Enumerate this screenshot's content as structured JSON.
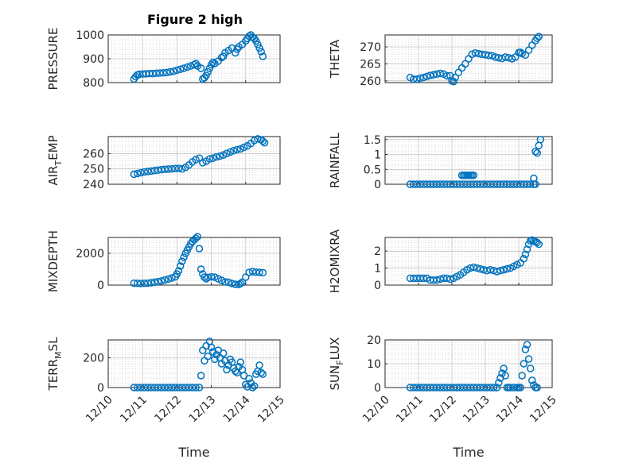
{
  "figure_title": "Figure 2 high",
  "colors": {
    "series": "#0072BD",
    "axis": "#262626",
    "grid": "#b0b0b0"
  },
  "chart_data": [
    {
      "type": "scatter",
      "title": "Figure 2 high",
      "xlabel": "",
      "ylabel": "PRESSURE",
      "ylim": [
        800,
        1000
      ],
      "yticks": [
        "800",
        "900",
        "1000"
      ],
      "xlim": [
        0,
        5
      ],
      "xticks": [
        "12/10",
        "12/11",
        "12/12",
        "12/13",
        "12/14",
        "12/15"
      ],
      "show_xticklabels": false,
      "grid": "on",
      "x": [
        0.75,
        0.8,
        0.85,
        0.9,
        1.0,
        1.1,
        1.2,
        1.3,
        1.4,
        1.5,
        1.6,
        1.7,
        1.8,
        1.9,
        2.0,
        2.1,
        2.2,
        2.3,
        2.4,
        2.5,
        2.55,
        2.6,
        2.7,
        2.75,
        2.8,
        2.85,
        2.9,
        2.95,
        3.0,
        3.05,
        3.1,
        3.2,
        3.3,
        3.35,
        3.4,
        3.5,
        3.6,
        3.7,
        3.75,
        3.8,
        3.9,
        4.0,
        4.05,
        4.1,
        4.15,
        4.2,
        4.25,
        4.3,
        4.35,
        4.4,
        4.45,
        4.5
      ],
      "y": [
        815,
        825,
        832,
        835,
        836,
        837,
        838,
        838,
        839,
        840,
        841,
        842,
        845,
        848,
        852,
        856,
        860,
        865,
        870,
        875,
        880,
        870,
        860,
        815,
        820,
        830,
        845,
        860,
        875,
        885,
        880,
        890,
        905,
        910,
        925,
        935,
        945,
        925,
        940,
        950,
        960,
        975,
        985,
        995,
        1000,
        990,
        985,
        975,
        960,
        945,
        930,
        910
      ]
    },
    {
      "type": "scatter",
      "title": "",
      "xlabel": "",
      "ylabel": "THETA",
      "ylim": [
        259.5,
        273.5
      ],
      "yticks": [
        "260",
        "265",
        "270"
      ],
      "xlim": [
        0,
        5
      ],
      "xticks": [
        "12/10",
        "12/11",
        "12/12",
        "12/13",
        "12/14",
        "12/15"
      ],
      "show_xticklabels": false,
      "grid": "on",
      "x": [
        0.75,
        0.85,
        0.95,
        1.05,
        1.15,
        1.25,
        1.35,
        1.45,
        1.55,
        1.65,
        1.75,
        1.85,
        1.95,
        2.0,
        2.05,
        2.1,
        2.2,
        2.3,
        2.4,
        2.5,
        2.6,
        2.7,
        2.8,
        2.9,
        3.0,
        3.1,
        3.2,
        3.3,
        3.4,
        3.5,
        3.6,
        3.7,
        3.8,
        3.9,
        4.0,
        4.05,
        4.1,
        4.2,
        4.3,
        4.4,
        4.5,
        4.55,
        4.6
      ],
      "y": [
        261,
        260.5,
        260.5,
        260.8,
        261,
        261.3,
        261.6,
        261.8,
        262,
        262.2,
        262,
        261.5,
        261.5,
        260,
        259.8,
        261,
        262.5,
        263.8,
        265,
        266.5,
        267.8,
        268.2,
        268,
        267.8,
        267.7,
        267.5,
        267.4,
        267,
        266.8,
        266.6,
        267,
        266.8,
        266.5,
        267,
        268.3,
        268.4,
        268,
        267.6,
        269,
        270.5,
        271.8,
        272.5,
        273
      ]
    },
    {
      "type": "scatter",
      "title": "",
      "xlabel": "",
      "ylabel": "AIR_TEMP",
      "ylim": [
        240,
        271
      ],
      "yticks": [
        "240",
        "250",
        "260"
      ],
      "xlim": [
        0,
        5
      ],
      "xticks": [
        "12/10",
        "12/11",
        "12/12",
        "12/13",
        "12/14",
        "12/15"
      ],
      "show_xticklabels": false,
      "grid": "on",
      "x": [
        0.75,
        0.85,
        0.95,
        1.05,
        1.15,
        1.25,
        1.35,
        1.45,
        1.55,
        1.65,
        1.75,
        1.85,
        1.95,
        2.05,
        2.15,
        2.25,
        2.35,
        2.45,
        2.55,
        2.65,
        2.75,
        2.85,
        2.95,
        3.05,
        3.15,
        3.25,
        3.35,
        3.45,
        3.55,
        3.65,
        3.75,
        3.85,
        3.95,
        4.05,
        4.15,
        4.25,
        4.35,
        4.45,
        4.5,
        4.55
      ],
      "y": [
        246.5,
        247,
        247.5,
        248,
        248.3,
        248.6,
        248.9,
        249.2,
        249.5,
        249.7,
        249.9,
        250,
        250.2,
        250.3,
        250,
        251,
        252.5,
        254.5,
        256,
        257,
        254,
        255,
        256.5,
        257,
        257.8,
        258.3,
        259,
        260,
        261,
        261.8,
        262.5,
        263,
        264,
        265,
        266.5,
        268.5,
        269.5,
        269,
        268,
        267
      ]
    },
    {
      "type": "scatter",
      "title": "",
      "xlabel": "",
      "ylabel": "RAINFALL",
      "ylim": [
        0,
        1.6
      ],
      "yticks": [
        "0",
        "0.5",
        "1",
        "1.5"
      ],
      "xlim": [
        0,
        5
      ],
      "xticks": [
        "12/10",
        "12/11",
        "12/12",
        "12/13",
        "12/14",
        "12/15"
      ],
      "show_xticklabels": false,
      "grid": "on",
      "x": [
        0.75,
        0.85,
        0.95,
        1.05,
        1.15,
        1.25,
        1.35,
        1.45,
        1.55,
        1.65,
        1.75,
        1.85,
        1.95,
        2.05,
        2.15,
        2.25,
        2.35,
        2.45,
        2.55,
        2.65,
        2.75,
        2.85,
        2.95,
        3.05,
        3.15,
        3.25,
        3.35,
        3.45,
        3.55,
        3.65,
        3.75,
        3.85,
        3.95,
        4.05,
        4.15,
        4.25,
        4.35,
        4.45,
        4.5,
        2.3,
        2.35,
        2.4,
        2.45,
        2.5,
        2.55,
        2.6,
        2.65,
        4.45,
        4.5,
        4.55,
        4.6,
        4.65
      ],
      "y": [
        0,
        0,
        0,
        0,
        0,
        0,
        0,
        0,
        0,
        0,
        0,
        0,
        0,
        0,
        0,
        0,
        0,
        0,
        0,
        0,
        0,
        0,
        0,
        0,
        0,
        0,
        0,
        0,
        0,
        0,
        0,
        0,
        0,
        0,
        0,
        0,
        0,
        0,
        0,
        0.3,
        0.3,
        0.3,
        0.3,
        0.3,
        0.3,
        0.3,
        0.3,
        0.2,
        1.1,
        1.05,
        1.3,
        1.5
      ]
    },
    {
      "type": "scatter",
      "title": "",
      "xlabel": "",
      "ylabel": "MIXDEPTH",
      "ylim": [
        0,
        3000
      ],
      "yticks": [
        "0",
        "2000"
      ],
      "xlim": [
        0,
        5
      ],
      "xticks": [
        "12/10",
        "12/11",
        "12/12",
        "12/13",
        "12/14",
        "12/15"
      ],
      "show_xticklabels": false,
      "grid": "on",
      "x": [
        0.75,
        0.85,
        0.95,
        1.05,
        1.15,
        1.25,
        1.35,
        1.45,
        1.55,
        1.65,
        1.75,
        1.85,
        1.95,
        2.0,
        2.05,
        2.1,
        2.15,
        2.2,
        2.25,
        2.3,
        2.35,
        2.4,
        2.45,
        2.5,
        2.55,
        2.6,
        2.65,
        2.7,
        2.75,
        2.8,
        2.85,
        2.9,
        3.0,
        3.1,
        3.2,
        3.3,
        3.4,
        3.5,
        3.6,
        3.7,
        3.8,
        3.85,
        3.9,
        4.0,
        4.1,
        4.2,
        4.3,
        4.4,
        4.5
      ],
      "y": [
        120,
        110,
        100,
        110,
        120,
        150,
        180,
        220,
        260,
        320,
        380,
        450,
        520,
        700,
        900,
        1200,
        1500,
        1750,
        2000,
        2200,
        2400,
        2600,
        2750,
        2850,
        2950,
        3050,
        2300,
        1000,
        700,
        500,
        400,
        480,
        520,
        500,
        400,
        300,
        200,
        180,
        100,
        50,
        40,
        100,
        180,
        500,
        800,
        850,
        820,
        800,
        780
      ]
    },
    {
      "type": "scatter",
      "title": "",
      "xlabel": "",
      "ylabel": "H2OMIXRA",
      "ylim": [
        0,
        2.8
      ],
      "yticks": [
        "0",
        "1",
        "2"
      ],
      "xlim": [
        0,
        5
      ],
      "xticks": [
        "12/10",
        "12/11",
        "12/12",
        "12/13",
        "12/14",
        "12/15"
      ],
      "show_xticklabels": false,
      "grid": "on",
      "x": [
        0.75,
        0.85,
        0.95,
        1.05,
        1.15,
        1.25,
        1.35,
        1.45,
        1.55,
        1.65,
        1.75,
        1.85,
        1.95,
        2.05,
        2.15,
        2.25,
        2.35,
        2.45,
        2.55,
        2.65,
        2.75,
        2.85,
        2.95,
        3.05,
        3.15,
        3.25,
        3.35,
        3.45,
        3.55,
        3.65,
        3.75,
        3.85,
        3.95,
        4.05,
        4.15,
        4.2,
        4.25,
        4.3,
        4.35,
        4.4,
        4.45,
        4.5,
        4.55,
        4.6
      ],
      "y": [
        0.4,
        0.4,
        0.4,
        0.4,
        0.4,
        0.4,
        0.3,
        0.3,
        0.3,
        0.35,
        0.4,
        0.4,
        0.35,
        0.4,
        0.5,
        0.6,
        0.75,
        0.9,
        1.0,
        1.05,
        1.0,
        0.95,
        0.9,
        0.85,
        0.9,
        0.85,
        0.8,
        0.85,
        0.9,
        0.95,
        1.0,
        1.1,
        1.2,
        1.3,
        1.55,
        1.8,
        2.1,
        2.4,
        2.6,
        2.65,
        2.6,
        2.55,
        2.5,
        2.4
      ]
    },
    {
      "type": "scatter",
      "title": "",
      "xlabel": "Time",
      "ylabel": "TERR_MSL",
      "ylim": [
        0,
        320
      ],
      "yticks": [
        "0",
        "200"
      ],
      "xlim": [
        0,
        5
      ],
      "xticks": [
        "12/10",
        "12/11",
        "12/12",
        "12/13",
        "12/14",
        "12/15"
      ],
      "show_xticklabels": true,
      "grid": "on",
      "x": [
        0.75,
        0.85,
        0.95,
        1.05,
        1.15,
        1.25,
        1.35,
        1.45,
        1.55,
        1.65,
        1.75,
        1.85,
        1.95,
        2.05,
        2.15,
        2.25,
        2.35,
        2.45,
        2.55,
        2.65,
        2.7,
        2.75,
        2.8,
        2.85,
        2.9,
        2.95,
        3.0,
        3.05,
        3.1,
        3.15,
        3.2,
        3.25,
        3.3,
        3.35,
        3.4,
        3.45,
        3.5,
        3.55,
        3.6,
        3.65,
        3.7,
        3.75,
        3.8,
        3.85,
        3.9,
        3.95,
        4.0,
        4.05,
        4.1,
        4.15,
        4.2,
        4.25,
        4.3,
        4.35,
        4.4,
        4.45,
        4.5
      ],
      "y": [
        0,
        0,
        0,
        0,
        0,
        0,
        0,
        0,
        0,
        0,
        0,
        0,
        0,
        0,
        0,
        0,
        0,
        0,
        0,
        0,
        80,
        250,
        180,
        280,
        210,
        310,
        270,
        240,
        190,
        220,
        250,
        200,
        160,
        230,
        180,
        120,
        150,
        190,
        170,
        130,
        110,
        100,
        140,
        170,
        120,
        80,
        20,
        5,
        60,
        30,
        0,
        10,
        90,
        110,
        150,
        100,
        90
      ]
    },
    {
      "type": "scatter",
      "title": "",
      "xlabel": "Time",
      "ylabel": "SUN_FLUX",
      "ylim": [
        0,
        20
      ],
      "yticks": [
        "0",
        "10",
        "20"
      ],
      "xlim": [
        0,
        5
      ],
      "xticks": [
        "12/10",
        "12/11",
        "12/12",
        "12/13",
        "12/14",
        "12/15"
      ],
      "show_xticklabels": true,
      "grid": "on",
      "x": [
        0.75,
        0.85,
        0.95,
        1.05,
        1.15,
        1.25,
        1.35,
        1.45,
        1.55,
        1.65,
        1.75,
        1.85,
        1.95,
        2.05,
        2.15,
        2.25,
        2.35,
        2.45,
        2.55,
        2.65,
        2.75,
        2.85,
        2.95,
        3.05,
        3.15,
        3.25,
        3.35,
        3.4,
        3.45,
        3.5,
        3.55,
        3.6,
        3.65,
        3.7,
        3.75,
        3.85,
        3.95,
        4.0,
        4.05,
        4.1,
        4.15,
        4.2,
        4.25,
        4.3,
        4.35,
        4.4,
        4.45,
        4.5,
        4.55
      ],
      "y": [
        0,
        0,
        0,
        0,
        0,
        0,
        0,
        0,
        0,
        0,
        0,
        0,
        0,
        0,
        0,
        0,
        0,
        0,
        0,
        0,
        0,
        0,
        0,
        0,
        0,
        0,
        0,
        2,
        4,
        6,
        8,
        5,
        0,
        0,
        0,
        0,
        0,
        0,
        0,
        5,
        10,
        16,
        18,
        12,
        8,
        3,
        1,
        0,
        0
      ]
    }
  ]
}
